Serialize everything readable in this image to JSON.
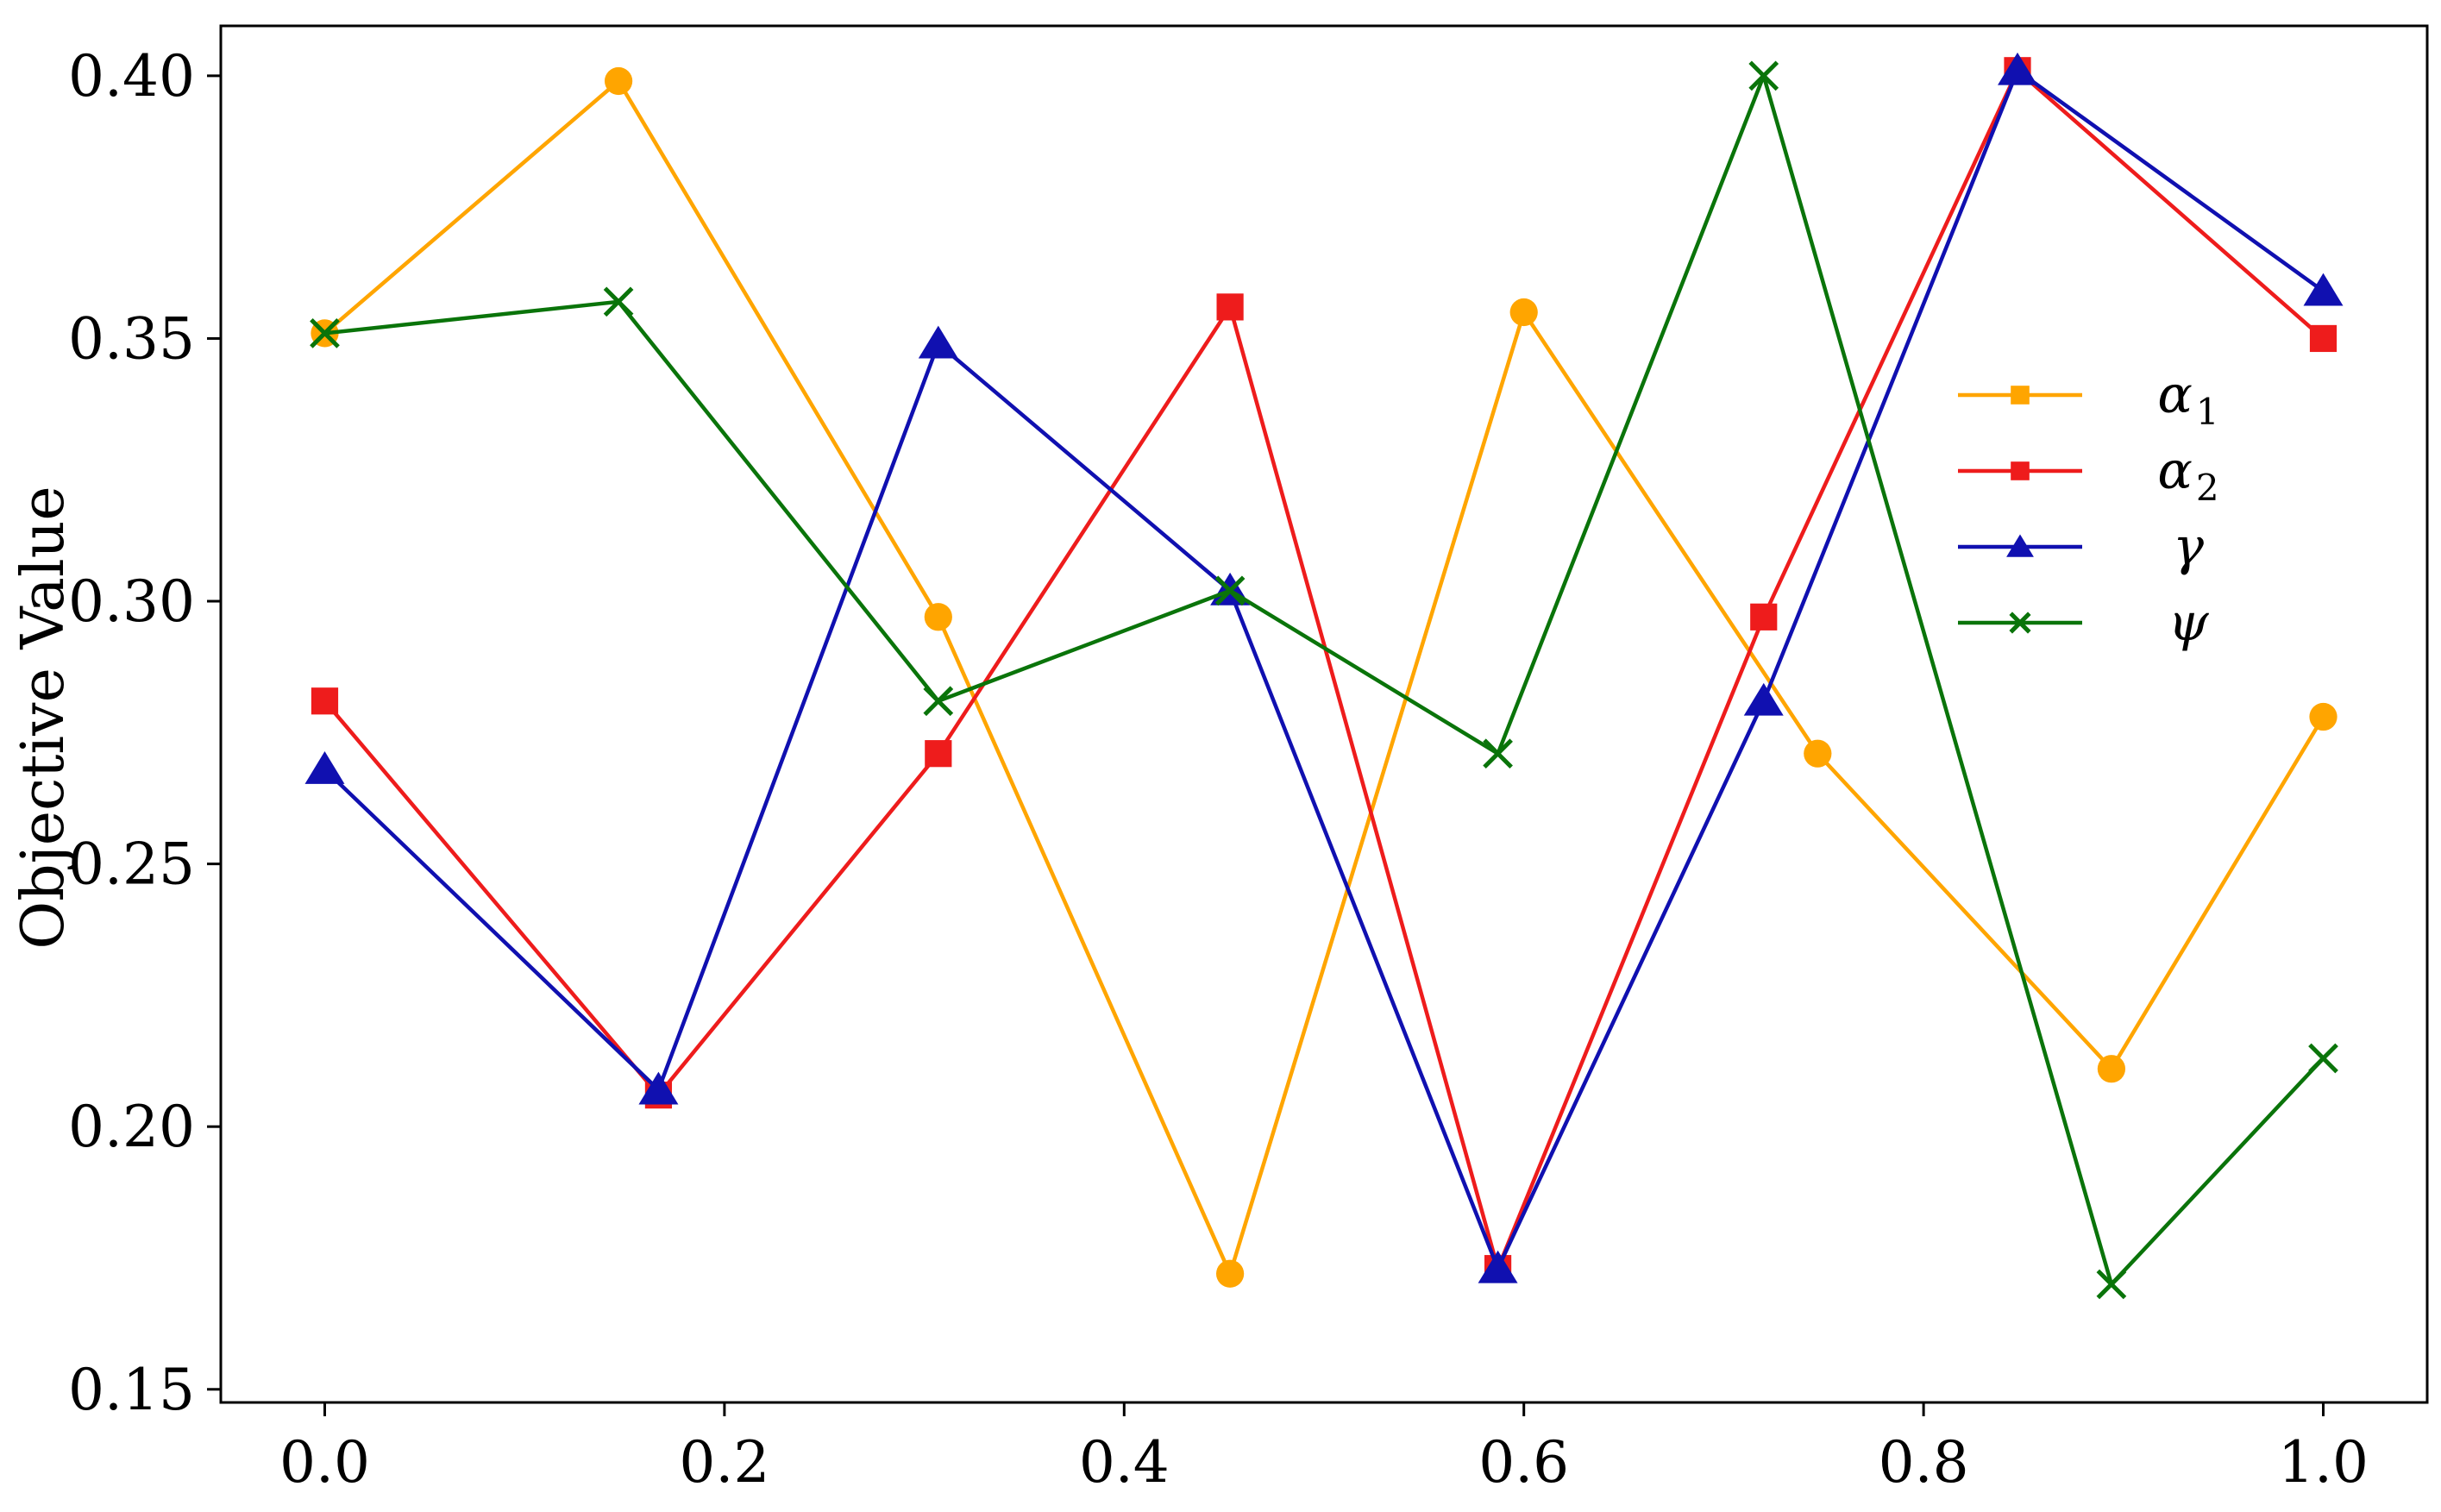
{
  "chart_data": {
    "type": "line",
    "title": "",
    "xlabel": "",
    "ylabel": "Objective Value",
    "xlim": [
      -0.052,
      1.052
    ],
    "ylim": [
      0.1475,
      0.4095
    ],
    "x_ticks": [
      0.0,
      0.2,
      0.4,
      0.6,
      0.8,
      1.0
    ],
    "y_ticks": [
      0.15,
      0.2,
      0.25,
      0.3,
      0.35,
      0.4
    ],
    "x_tick_labels": [
      "0.0",
      "0.2",
      "0.4",
      "0.6",
      "0.8",
      "1.0"
    ],
    "y_tick_labels": [
      "0.15",
      "0.20",
      "0.25",
      "0.30",
      "0.35",
      "0.40"
    ],
    "grid": false,
    "legend_position": "right",
    "series": [
      {
        "name": "α1",
        "label_main": "α",
        "label_sub": "1",
        "color": "#FFA500",
        "marker": "circle",
        "legend_marker": "square",
        "points": [
          [
            0.0,
            0.351
          ],
          [
            0.147,
            0.399
          ],
          [
            0.307,
            0.297
          ],
          [
            0.453,
            0.172
          ],
          [
            0.6,
            0.355
          ],
          [
            0.747,
            0.271
          ],
          [
            0.894,
            0.211
          ],
          [
            1.0,
            0.278
          ]
        ]
      },
      {
        "name": "α2",
        "label_main": "α",
        "label_sub": "2",
        "color": "#EE1C1C",
        "marker": "square",
        "legend_marker": "square",
        "points": [
          [
            0.0,
            0.281
          ],
          [
            0.167,
            0.206
          ],
          [
            0.307,
            0.271
          ],
          [
            0.453,
            0.356
          ],
          [
            0.587,
            0.173
          ],
          [
            0.72,
            0.297
          ],
          [
            0.847,
            0.401
          ],
          [
            1.0,
            0.35
          ]
        ]
      },
      {
        "name": "γ",
        "label_main": "γ",
        "label_sub": "",
        "color": "#1010B0",
        "marker": "triangle",
        "legend_marker": "triangle",
        "points": [
          [
            0.0,
            0.268
          ],
          [
            0.167,
            0.207
          ],
          [
            0.307,
            0.349
          ],
          [
            0.453,
            0.302
          ],
          [
            0.587,
            0.173
          ],
          [
            0.72,
            0.281
          ],
          [
            0.847,
            0.401
          ],
          [
            1.0,
            0.359
          ]
        ]
      },
      {
        "name": "ψ",
        "label_main": "ψ",
        "label_sub": "",
        "color": "#0A740A",
        "marker": "x",
        "legend_marker": "x",
        "points": [
          [
            0.0,
            0.351
          ],
          [
            0.147,
            0.357
          ],
          [
            0.307,
            0.281
          ],
          [
            0.453,
            0.302
          ],
          [
            0.587,
            0.271
          ],
          [
            0.72,
            0.4
          ],
          [
            0.894,
            0.17
          ],
          [
            1.0,
            0.213
          ]
        ]
      }
    ]
  }
}
